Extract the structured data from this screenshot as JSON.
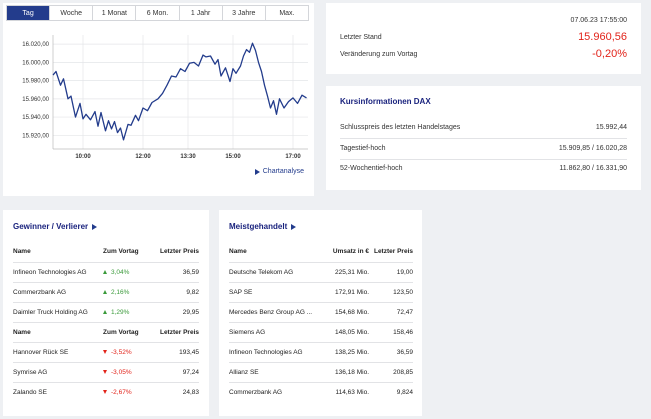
{
  "tabs": [
    {
      "label": "Tag",
      "active": true
    },
    {
      "label": "Woche",
      "active": false
    },
    {
      "label": "1 Monat",
      "active": false
    },
    {
      "label": "6 Mon.",
      "active": false
    },
    {
      "label": "1 Jahr",
      "active": false
    },
    {
      "label": "3 Jahre",
      "active": false
    },
    {
      "label": "Max.",
      "active": false
    }
  ],
  "chart_link": "Chartanalyse",
  "chart_data": {
    "type": "line",
    "title": "",
    "xlabel": "",
    "ylabel": "",
    "y_ticks": [
      "16.020,00",
      "16.000,00",
      "15.980,00",
      "15.960,00",
      "15.940,00",
      "15.920,00"
    ],
    "y_tick_values": [
      16020,
      16000,
      15980,
      15960,
      15940,
      15920
    ],
    "ylim": [
      15905,
      16030
    ],
    "x_ticks": [
      "10:00",
      "12:00",
      "13:30",
      "15:00",
      "17:00"
    ],
    "x_tick_values": [
      10.0,
      12.0,
      13.5,
      15.0,
      17.0
    ],
    "xlim": [
      9.0,
      17.5
    ],
    "grid": true,
    "series": [
      {
        "color": "#233c8c",
        "x": [
          9.0,
          9.1,
          9.25,
          9.35,
          9.5,
          9.6,
          9.75,
          9.9,
          10.0,
          10.1,
          10.25,
          10.4,
          10.5,
          10.6,
          10.75,
          10.85,
          10.95,
          11.05,
          11.15,
          11.25,
          11.35,
          11.5,
          11.6,
          11.75,
          11.85,
          12.0,
          12.15,
          12.3,
          12.5,
          12.65,
          12.8,
          12.95,
          13.1,
          13.25,
          13.4,
          13.55,
          13.7,
          13.85,
          14.0,
          14.1,
          14.25,
          14.4,
          14.5,
          14.6,
          14.75,
          14.9,
          15.0,
          15.1,
          15.25,
          15.35,
          15.45,
          15.55,
          15.65,
          15.75,
          15.85,
          15.95,
          16.05,
          16.15,
          16.25,
          16.35,
          16.45,
          16.55,
          16.7,
          16.85,
          17.0,
          17.15,
          17.3,
          17.45
        ],
        "values": [
          15986,
          15990,
          15975,
          15982,
          15960,
          15963,
          15940,
          15955,
          15938,
          15943,
          15937,
          15946,
          15930,
          15945,
          15925,
          15936,
          15927,
          15935,
          15923,
          15928,
          15915,
          15932,
          15931,
          15942,
          15936,
          15950,
          15947,
          15956,
          15960,
          15966,
          15975,
          15985,
          15984,
          15993,
          15990,
          15999,
          16000,
          15996,
          16008,
          16006,
          16007,
          15998,
          16003,
          15985,
          15994,
          15979,
          15993,
          15988,
          15996,
          16007,
          16014,
          16011,
          16021,
          16013,
          16000,
          15990,
          15975,
          15963,
          15950,
          15958,
          15943,
          15960,
          15950,
          15957,
          15961,
          15955,
          15964,
          15961
        ]
      }
    ]
  },
  "summary": {
    "datetime": "07.06.23 17:55:00",
    "last_label": "Letzter Stand",
    "last_value": "15.960,56",
    "change_label": "Veränderung zum Vortag",
    "change_value": "-0,20%"
  },
  "info": {
    "title": "Kursinformationen DAX",
    "rows": [
      {
        "label": "Schlusspreis des letzten Handelstages",
        "value": "15.992,44"
      },
      {
        "label": "Tagestief-hoch",
        "value": "15.909,85 / 16.020,28"
      },
      {
        "label": "52-Wochentief-hoch",
        "value": "11.862,80 / 16.331,90"
      }
    ]
  },
  "winners_losers": {
    "title": "Gewinner / Verlierer",
    "headers": [
      "Name",
      "Zum Vortag",
      "Letzter Preis"
    ],
    "winners": [
      {
        "name": "Infineon Technologies AG",
        "change": "3,04%",
        "price": "36,59"
      },
      {
        "name": "Commerzbank AG",
        "change": "2,16%",
        "price": "9,82"
      },
      {
        "name": "Daimler Truck Holding AG",
        "change": "1,29%",
        "price": "29,95"
      }
    ],
    "losers": [
      {
        "name": "Hannover Rück SE",
        "change": "-3,52%",
        "price": "193,45"
      },
      {
        "name": "Symrise AG",
        "change": "-3,05%",
        "price": "97,24"
      },
      {
        "name": "Zalando SE",
        "change": "-2,67%",
        "price": "24,83"
      }
    ]
  },
  "most_traded": {
    "title": "Meistgehandelt",
    "headers": [
      "Name",
      "Umsatz in €",
      "Letzter Preis"
    ],
    "rows": [
      {
        "name": "Deutsche Telekom AG",
        "volume": "225,31 Mio.",
        "price": "19,00"
      },
      {
        "name": "SAP SE",
        "volume": "172,91 Mio.",
        "price": "123,50"
      },
      {
        "name": "Mercedes Benz Group AG ...",
        "volume": "154,68 Mio.",
        "price": "72,47"
      },
      {
        "name": "Siemens AG",
        "volume": "148,05 Mio.",
        "price": "158,46"
      },
      {
        "name": "Infineon Technologies AG",
        "volume": "138,25 Mio.",
        "price": "36,59"
      },
      {
        "name": "Allianz SE",
        "volume": "136,18 Mio.",
        "price": "208,85"
      },
      {
        "name": "Commerzbank AG",
        "volume": "114,63 Mio.",
        "price": "9,824"
      }
    ]
  }
}
